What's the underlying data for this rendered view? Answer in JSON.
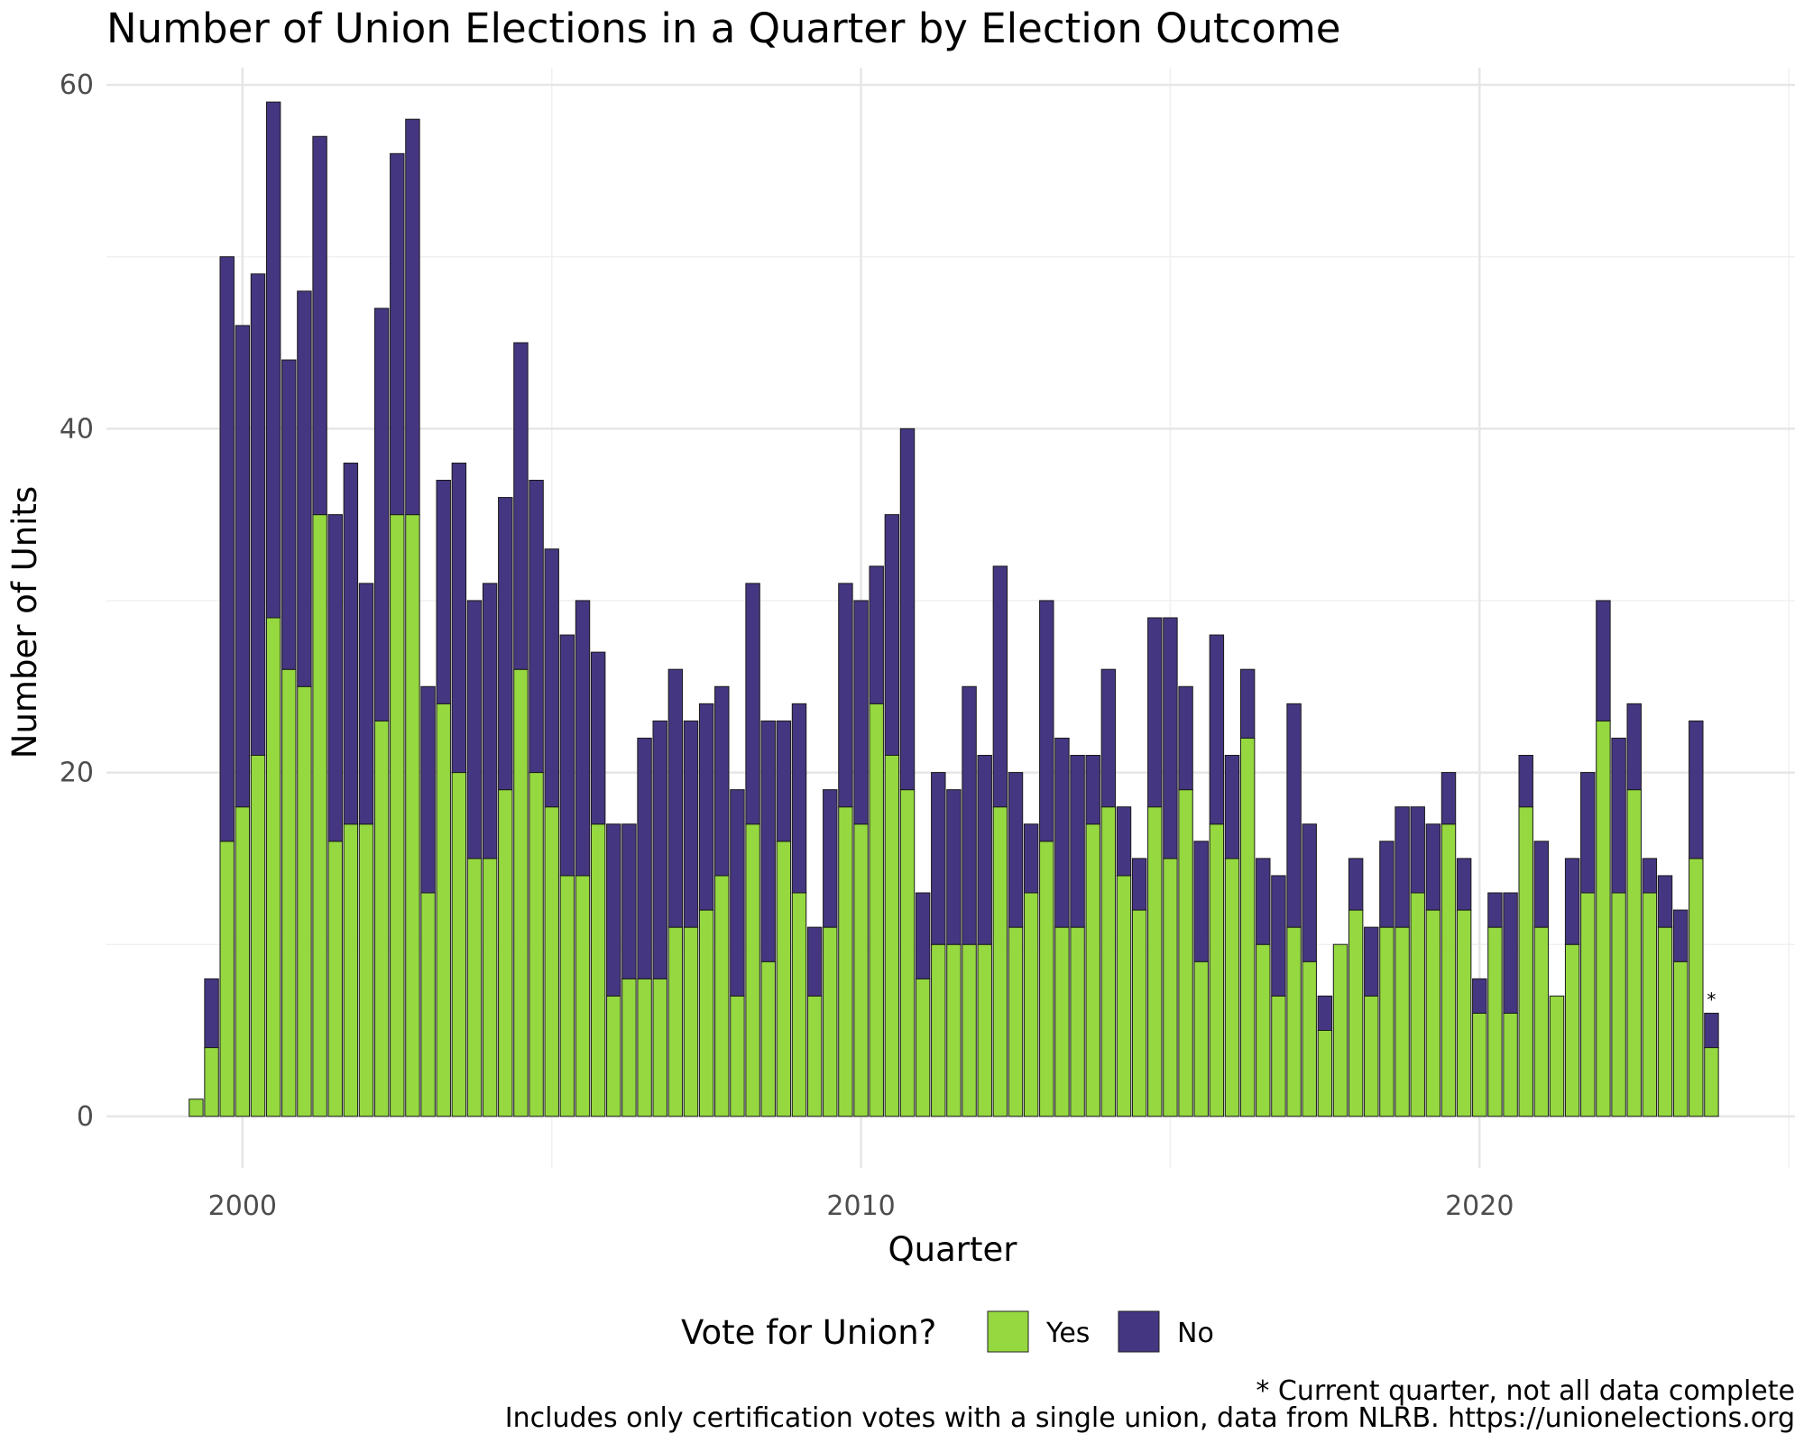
{
  "chart_data": {
    "type": "bar",
    "stacked": true,
    "title": "Number of Union Elections in a Quarter by Election Outcome",
    "xlabel": "Quarter",
    "ylabel": "Number of Units",
    "xlim": [
      1997.8,
      2025.1
    ],
    "ylim": [
      -3,
      61
    ],
    "x_ticks": [
      2000,
      2010,
      2020
    ],
    "y_ticks": [
      0,
      20,
      40,
      60
    ],
    "grid": true,
    "legend": {
      "title": "Vote for Union?",
      "position": "bottom"
    },
    "series": [
      {
        "name": "Yes",
        "color": "#95d840",
        "values": [
          1,
          4,
          16,
          18,
          21,
          29,
          26,
          25,
          35,
          16,
          17,
          17,
          23,
          35,
          35,
          13,
          24,
          20,
          15,
          15,
          19,
          26,
          20,
          18,
          14,
          14,
          17,
          7,
          8,
          8,
          8,
          11,
          11,
          12,
          14,
          7,
          17,
          9,
          16,
          13,
          7,
          11,
          18,
          17,
          24,
          21,
          19,
          8,
          10,
          10,
          10,
          10,
          18,
          11,
          13,
          16,
          11,
          11,
          17,
          18,
          14,
          12,
          18,
          15,
          19,
          9,
          17,
          15,
          22,
          10,
          7,
          11,
          9,
          5,
          10,
          12,
          7,
          11,
          11,
          13,
          12,
          17,
          12,
          6,
          11,
          6,
          18,
          11,
          7,
          10,
          13,
          23,
          13,
          19,
          13,
          11,
          9,
          15,
          4
        ]
      },
      {
        "name": "No",
        "color": "#453681",
        "values": [
          0,
          4,
          34,
          28,
          28,
          30,
          18,
          23,
          22,
          19,
          21,
          14,
          24,
          21,
          23,
          12,
          13,
          18,
          15,
          16,
          17,
          19,
          17,
          15,
          14,
          16,
          10,
          10,
          9,
          14,
          15,
          15,
          12,
          12,
          11,
          12,
          14,
          14,
          7,
          11,
          4,
          8,
          13,
          13,
          8,
          14,
          21,
          5,
          10,
          9,
          15,
          11,
          14,
          9,
          4,
          14,
          11,
          10,
          4,
          8,
          4,
          3,
          11,
          14,
          6,
          7,
          11,
          6,
          4,
          5,
          7,
          13,
          8,
          2,
          0,
          3,
          4,
          5,
          7,
          5,
          5,
          3,
          3,
          2,
          2,
          7,
          3,
          5,
          0,
          5,
          7,
          7,
          9,
          5,
          2,
          3,
          3,
          8,
          2
        ]
      }
    ],
    "x_start": 1999.25,
    "x_step": 0.25,
    "annotations": [
      {
        "text": "*",
        "series_index": 98
      }
    ]
  },
  "caption": {
    "line1": "* Current quarter, not all data complete",
    "line2": "Includes only certification votes with a single union, data from NLRB. https://unionelections.org"
  }
}
